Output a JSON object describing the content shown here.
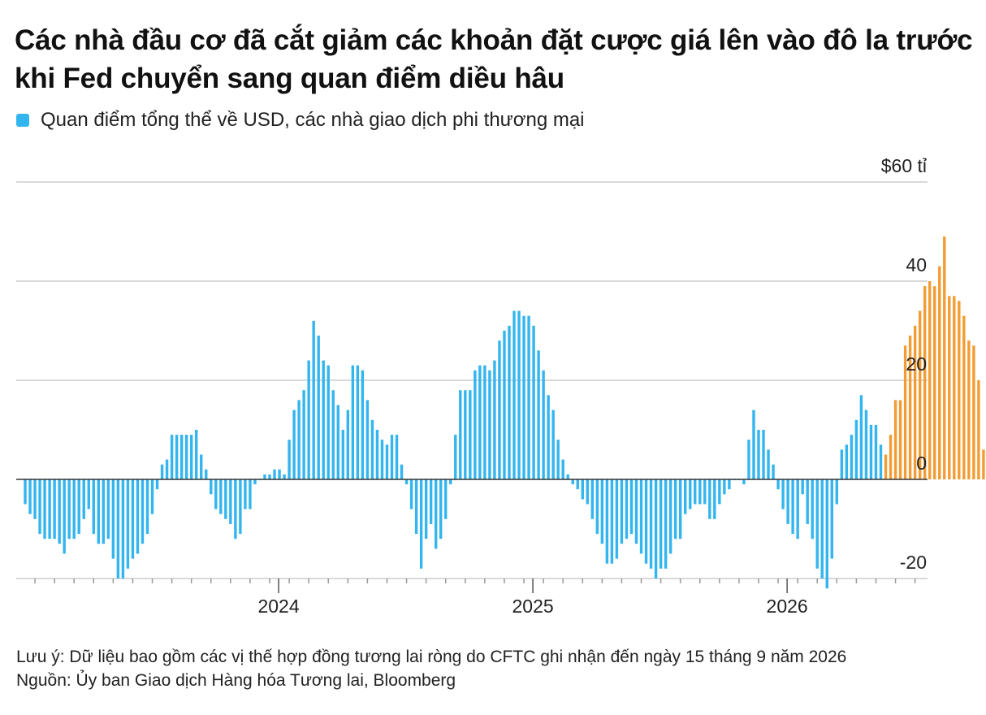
{
  "title": "Các nhà đầu cơ đã cắt giảm các khoản đặt cược giá lên vào đô la trước khi Fed chuyển sang quan điểm diều hâu",
  "legend": {
    "label": "Quan điểm tổng thể về USD, các nhà giao dịch phi thương mại",
    "color": "#33b5ef"
  },
  "footer": {
    "note": "Lưu ý: Dữ liệu bao gồm các vị thế hợp đồng tương lai ròng do CFTC ghi nhận đến ngày 15 tháng 9 năm 2026",
    "source": "Nguồn: Ủy ban Giao dịch Hàng hóa Tương lai, Bloomberg"
  },
  "chart_data": {
    "type": "bar",
    "title": "Các nhà đầu cơ đã cắt giảm các khoản đặt cược giá lên vào đô la trước khi Fed chuyển sang quan điểm diều hâu",
    "xlabel": "",
    "ylabel": "",
    "ylim": [
      -20,
      60
    ],
    "y_ticks": [
      {
        "value": 60,
        "label": "$60 tỉ"
      },
      {
        "value": 40,
        "label": "40"
      },
      {
        "value": 20,
        "label": "20"
      },
      {
        "value": 0,
        "label": "0"
      },
      {
        "value": -20,
        "label": "-20"
      }
    ],
    "x_ticks": [
      {
        "index": 52,
        "label": "2024"
      },
      {
        "index": 104,
        "label": "2025"
      },
      {
        "index": 156,
        "label": "2026"
      }
    ],
    "grid": true,
    "colors": {
      "historical": "#33b5ef",
      "recent": "#f39c34",
      "grid": "#d9d9d9",
      "axis": "#333333"
    },
    "highlight_from_index": 176,
    "series": [
      {
        "values": [
          -5,
          -7,
          -8,
          -11,
          -12,
          -12,
          -12,
          -13,
          -15,
          -12,
          -12,
          -11,
          -8,
          -6,
          -11,
          -13,
          -13,
          -12,
          -16,
          -20,
          -20,
          -18,
          -16,
          -15,
          -13,
          -11,
          -7,
          -2,
          3,
          4,
          9,
          9,
          9,
          9,
          9,
          10,
          5,
          2,
          -3,
          -6,
          -7,
          -8,
          -9,
          -12,
          -11,
          -6,
          -6,
          -1,
          0,
          1,
          1,
          2,
          2,
          1,
          8,
          14,
          16,
          18,
          24,
          32,
          29,
          24,
          23,
          18,
          15,
          10,
          14,
          23,
          23,
          22,
          16,
          12,
          10,
          8,
          7,
          9,
          9,
          3,
          -1,
          -6,
          -11,
          -18,
          -12,
          -9,
          -14,
          -12,
          -8,
          -1,
          9,
          18,
          18,
          18,
          22,
          23,
          23,
          22,
          24,
          28,
          30,
          31,
          34,
          34,
          33,
          33,
          31,
          26,
          22,
          17,
          14,
          8,
          4,
          1,
          -1,
          -2,
          -4,
          -5,
          -8,
          -11,
          -13,
          -17,
          -17,
          -16,
          -13,
          -12,
          -11,
          -13,
          -15,
          -17,
          -18,
          -20,
          -18,
          -18,
          -15,
          -12,
          -12,
          -7,
          -6,
          -5,
          -5,
          -5,
          -8,
          -8,
          -5,
          -3,
          -2,
          0,
          0,
          -1,
          8,
          14,
          10,
          10,
          6,
          3,
          -2,
          -6,
          -9,
          -11,
          -12,
          -3,
          -9,
          -12,
          -18,
          -20,
          -22,
          -16,
          -5,
          6,
          7,
          9,
          12,
          17,
          14,
          11,
          11,
          7,
          5,
          9,
          16,
          16,
          27,
          29,
          31,
          34,
          39,
          40,
          39,
          43,
          49,
          37,
          37,
          36,
          33,
          28,
          27,
          20,
          6
        ]
      }
    ]
  }
}
